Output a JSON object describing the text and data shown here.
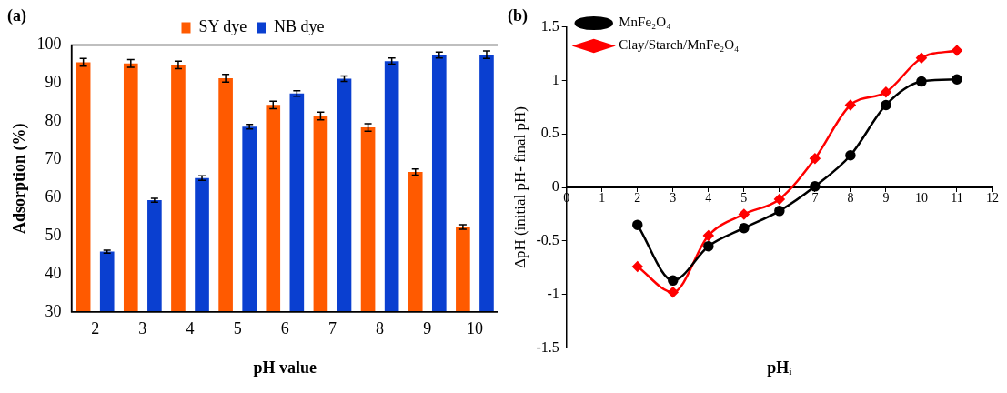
{
  "chart_data": [
    {
      "type": "bar",
      "title": "(a)",
      "xlabel": "pH value",
      "ylabel": "Adsorption (%)",
      "categories": [
        "2",
        "3",
        "4",
        "5",
        "6",
        "7",
        "8",
        "9",
        "10"
      ],
      "series": [
        {
          "name": "SY dye",
          "color": "#ff5a00",
          "values": [
            95.5,
            95.2,
            94.8,
            91.3,
            84.3,
            81.4,
            78.4,
            66.7,
            52.3
          ],
          "errors": [
            1,
            1,
            1,
            1,
            1,
            1,
            1,
            0.8,
            0.6
          ]
        },
        {
          "name": "NB dye",
          "color": "#0a3fd0",
          "values": [
            45.8,
            59.3,
            65.1,
            78.6,
            87.3,
            91.2,
            95.8,
            97.4,
            97.5
          ],
          "errors": [
            0.4,
            0.5,
            0.6,
            0.6,
            0.7,
            0.7,
            0.8,
            0.8,
            1
          ]
        }
      ],
      "ylim": [
        30,
        100
      ],
      "yticks": [
        30,
        40,
        50,
        60,
        70,
        80,
        90,
        100
      ],
      "grid": false,
      "legend": "top"
    },
    {
      "type": "line",
      "title": "(b)",
      "xlabel": "pHᵢ",
      "ylabel": "ΔpH (initial pH- final pH)",
      "series": [
        {
          "name": "MnFe₂O₄",
          "color": "#000000",
          "marker": "circle",
          "x": [
            2,
            3,
            4,
            5,
            6,
            7,
            8,
            9,
            10,
            11
          ],
          "values": [
            -0.35,
            -0.87,
            -0.55,
            -0.38,
            -0.22,
            0.01,
            0.3,
            0.77,
            0.99,
            1.01
          ]
        },
        {
          "name": "Clay/Starch/MnFe₂O₄",
          "color": "#ff0000",
          "marker": "diamond",
          "x": [
            2,
            3,
            4,
            5,
            6,
            7,
            8,
            9,
            10,
            11
          ],
          "values": [
            -0.74,
            -0.98,
            -0.45,
            -0.25,
            -0.11,
            0.27,
            0.77,
            0.89,
            1.21,
            1.28
          ]
        }
      ],
      "xlim": [
        0,
        12
      ],
      "xticks": [
        0,
        1,
        2,
        3,
        4,
        5,
        {
          "value": 6,
          "label": null
        },
        7,
        8,
        9,
        10,
        11,
        12
      ],
      "ylim": [
        -1.5,
        1.5
      ],
      "yticks": [
        -1.5,
        -1,
        -0.5,
        0,
        0.5,
        1,
        1.5
      ],
      "grid": false,
      "legend": "top left"
    }
  ]
}
